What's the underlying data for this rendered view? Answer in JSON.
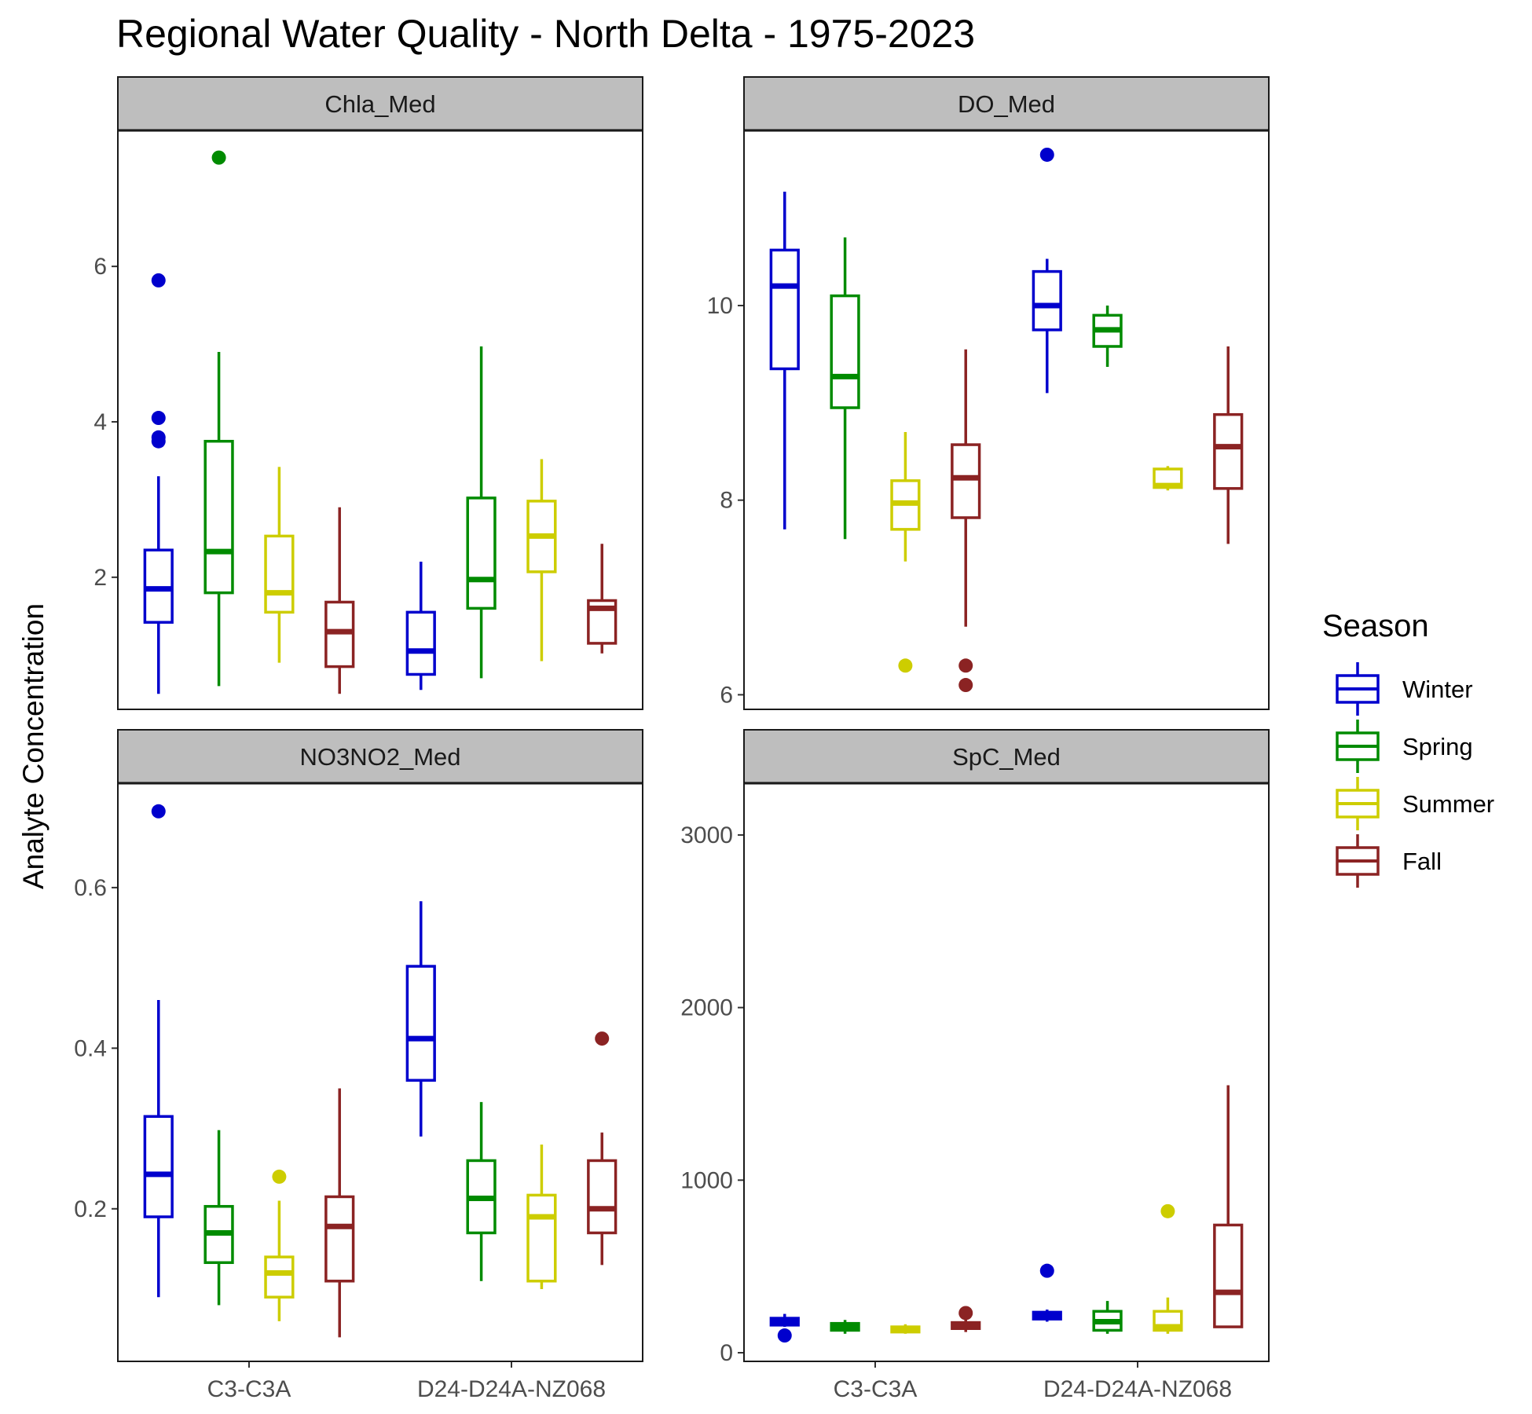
{
  "chart_data": {
    "type": "box",
    "title": "Regional Water Quality - North Delta - 1975-2023",
    "ylabel": "Analyte Concentration",
    "xlabel": "",
    "categories": [
      "C3-C3A",
      "D24-D24A-NZ068"
    ],
    "legend": {
      "title": "Season",
      "placement": "right",
      "entries": [
        {
          "name": "Winter",
          "color": "#0000CD"
        },
        {
          "name": "Spring",
          "color": "#008B00"
        },
        {
          "name": "Summer",
          "color": "#CDCD00"
        },
        {
          "name": "Fall",
          "color": "#8B2323"
        }
      ]
    },
    "panels": [
      {
        "name": "Chla_Med",
        "ylim": [
          0.3,
          7.75
        ],
        "yticks": [
          2,
          4,
          6
        ],
        "boxes": [
          {
            "station": "C3-C3A",
            "season": "Winter",
            "min": 0.5,
            "q1": 1.42,
            "median": 1.85,
            "q3": 2.35,
            "max": 3.3,
            "outliers": [
              3.75,
              3.8,
              4.05,
              5.82
            ]
          },
          {
            "station": "C3-C3A",
            "season": "Spring",
            "min": 0.6,
            "q1": 1.8,
            "median": 2.33,
            "q3": 3.75,
            "max": 4.9,
            "outliers": [
              7.4
            ]
          },
          {
            "station": "C3-C3A",
            "season": "Summer",
            "min": 0.9,
            "q1": 1.55,
            "median": 1.8,
            "q3": 2.53,
            "max": 3.42,
            "outliers": []
          },
          {
            "station": "C3-C3A",
            "season": "Fall",
            "min": 0.5,
            "q1": 0.85,
            "median": 1.3,
            "q3": 1.68,
            "max": 2.9,
            "outliers": []
          },
          {
            "station": "D24-D24A-NZ068",
            "season": "Winter",
            "min": 0.55,
            "q1": 0.75,
            "median": 1.05,
            "q3": 1.55,
            "max": 2.2,
            "outliers": []
          },
          {
            "station": "D24-D24A-NZ068",
            "season": "Spring",
            "min": 0.7,
            "q1": 1.6,
            "median": 1.97,
            "q3": 3.02,
            "max": 4.97,
            "outliers": []
          },
          {
            "station": "D24-D24A-NZ068",
            "season": "Summer",
            "min": 0.92,
            "q1": 2.07,
            "median": 2.53,
            "q3": 2.98,
            "max": 3.52,
            "outliers": []
          },
          {
            "station": "D24-D24A-NZ068",
            "season": "Fall",
            "min": 1.02,
            "q1": 1.15,
            "median": 1.6,
            "q3": 1.7,
            "max": 2.43,
            "outliers": []
          }
        ]
      },
      {
        "name": "DO_Med",
        "ylim": [
          5.85,
          11.8
        ],
        "yticks": [
          6,
          8,
          10
        ],
        "boxes": [
          {
            "station": "C3-C3A",
            "season": "Winter",
            "min": 7.7,
            "q1": 9.35,
            "median": 10.2,
            "q3": 10.57,
            "max": 11.17,
            "outliers": []
          },
          {
            "station": "C3-C3A",
            "season": "Spring",
            "min": 7.6,
            "q1": 8.95,
            "median": 9.27,
            "q3": 10.1,
            "max": 10.7,
            "outliers": []
          },
          {
            "station": "C3-C3A",
            "season": "Summer",
            "min": 7.37,
            "q1": 7.7,
            "median": 7.97,
            "q3": 8.2,
            "max": 8.7,
            "outliers": [
              6.3
            ]
          },
          {
            "station": "C3-C3A",
            "season": "Fall",
            "min": 6.7,
            "q1": 7.82,
            "median": 8.23,
            "q3": 8.57,
            "max": 9.55,
            "outliers": [
              6.3,
              6.1
            ]
          },
          {
            "station": "D24-D24A-NZ068",
            "season": "Winter",
            "min": 9.1,
            "q1": 9.75,
            "median": 10.0,
            "q3": 10.35,
            "max": 10.48,
            "outliers": [
              11.55
            ]
          },
          {
            "station": "D24-D24A-NZ068",
            "season": "Spring",
            "min": 9.37,
            "q1": 9.58,
            "median": 9.75,
            "q3": 9.9,
            "max": 10.0,
            "outliers": []
          },
          {
            "station": "D24-D24A-NZ068",
            "season": "Summer",
            "min": 8.1,
            "q1": 8.13,
            "median": 8.15,
            "q3": 8.32,
            "max": 8.35,
            "outliers": []
          },
          {
            "station": "D24-D24A-NZ068",
            "season": "Fall",
            "min": 7.55,
            "q1": 8.12,
            "median": 8.55,
            "q3": 8.88,
            "max": 9.58,
            "outliers": []
          }
        ]
      },
      {
        "name": "NO3NO2_Med",
        "ylim": [
          0.01,
          0.73
        ],
        "yticks": [
          0.2,
          0.4,
          0.6
        ],
        "boxes": [
          {
            "station": "C3-C3A",
            "season": "Winter",
            "min": 0.09,
            "q1": 0.19,
            "median": 0.243,
            "q3": 0.315,
            "max": 0.46,
            "outliers": [
              0.695
            ]
          },
          {
            "station": "C3-C3A",
            "season": "Spring",
            "min": 0.08,
            "q1": 0.133,
            "median": 0.17,
            "q3": 0.203,
            "max": 0.298,
            "outliers": []
          },
          {
            "station": "C3-C3A",
            "season": "Summer",
            "min": 0.06,
            "q1": 0.09,
            "median": 0.12,
            "q3": 0.14,
            "max": 0.21,
            "outliers": [
              0.24
            ]
          },
          {
            "station": "C3-C3A",
            "season": "Fall",
            "min": 0.04,
            "q1": 0.11,
            "median": 0.178,
            "q3": 0.215,
            "max": 0.35,
            "outliers": []
          },
          {
            "station": "D24-D24A-NZ068",
            "season": "Winter",
            "min": 0.29,
            "q1": 0.36,
            "median": 0.412,
            "q3": 0.502,
            "max": 0.583,
            "outliers": []
          },
          {
            "station": "D24-D24A-NZ068",
            "season": "Spring",
            "min": 0.11,
            "q1": 0.17,
            "median": 0.213,
            "q3": 0.26,
            "max": 0.333,
            "outliers": []
          },
          {
            "station": "D24-D24A-NZ068",
            "season": "Summer",
            "min": 0.1,
            "q1": 0.11,
            "median": 0.19,
            "q3": 0.217,
            "max": 0.28,
            "outliers": []
          },
          {
            "station": "D24-D24A-NZ068",
            "season": "Fall",
            "min": 0.13,
            "q1": 0.17,
            "median": 0.2,
            "q3": 0.26,
            "max": 0.295,
            "outliers": [
              0.412
            ]
          }
        ]
      },
      {
        "name": "SpC_Med",
        "ylim": [
          -50,
          3300
        ],
        "yticks": [
          0,
          1000,
          2000,
          3000
        ],
        "boxes": [
          {
            "station": "C3-C3A",
            "season": "Winter",
            "min": 150,
            "q1": 160,
            "median": 180,
            "q3": 200,
            "max": 225,
            "outliers": [
              100
            ]
          },
          {
            "station": "C3-C3A",
            "season": "Spring",
            "min": 110,
            "q1": 130,
            "median": 150,
            "q3": 170,
            "max": 190,
            "outliers": []
          },
          {
            "station": "C3-C3A",
            "season": "Summer",
            "min": 110,
            "q1": 120,
            "median": 135,
            "q3": 150,
            "max": 165,
            "outliers": []
          },
          {
            "station": "C3-C3A",
            "season": "Fall",
            "min": 120,
            "q1": 140,
            "median": 155,
            "q3": 175,
            "max": 195,
            "outliers": [
              230
            ]
          },
          {
            "station": "D24-D24A-NZ068",
            "season": "Winter",
            "min": 180,
            "q1": 195,
            "median": 215,
            "q3": 235,
            "max": 250,
            "outliers": [
              475
            ]
          },
          {
            "station": "D24-D24A-NZ068",
            "season": "Spring",
            "min": 110,
            "q1": 130,
            "median": 180,
            "q3": 240,
            "max": 300,
            "outliers": []
          },
          {
            "station": "D24-D24A-NZ068",
            "season": "Summer",
            "min": 110,
            "q1": 130,
            "median": 150,
            "q3": 240,
            "max": 320,
            "outliers": [
              820
            ]
          },
          {
            "station": "D24-D24A-NZ068",
            "season": "Fall",
            "min": 145,
            "q1": 150,
            "median": 350,
            "q3": 740,
            "max": 1550,
            "outliers": []
          }
        ]
      }
    ]
  }
}
